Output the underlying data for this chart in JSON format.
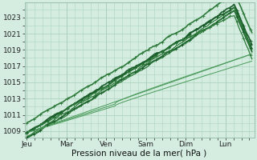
{
  "bg_color": "#d4ede0",
  "plot_bg": "#d4ede0",
  "grid_color": "#b0d4c0",
  "line_color_dark": "#1a5c2a",
  "line_color_mid": "#2d7a3a",
  "line_color_light": "#4a9a5a",
  "xlabel": "Pression niveau de la mer( hPa )",
  "x_ticks_labels": [
    "Jeu",
    "Mar",
    "Ven",
    "Sam",
    "Dim",
    "Lun"
  ],
  "x_ticks_pos": [
    0.0,
    0.9,
    1.8,
    2.7,
    3.6,
    4.5
  ],
  "ylim": [
    1008.2,
    1024.8
  ],
  "xlim": [
    -0.05,
    5.15
  ],
  "yticks": [
    1009,
    1011,
    1013,
    1015,
    1017,
    1019,
    1021,
    1023
  ],
  "tick_fontsize": 6.5,
  "label_fontsize": 7.5
}
